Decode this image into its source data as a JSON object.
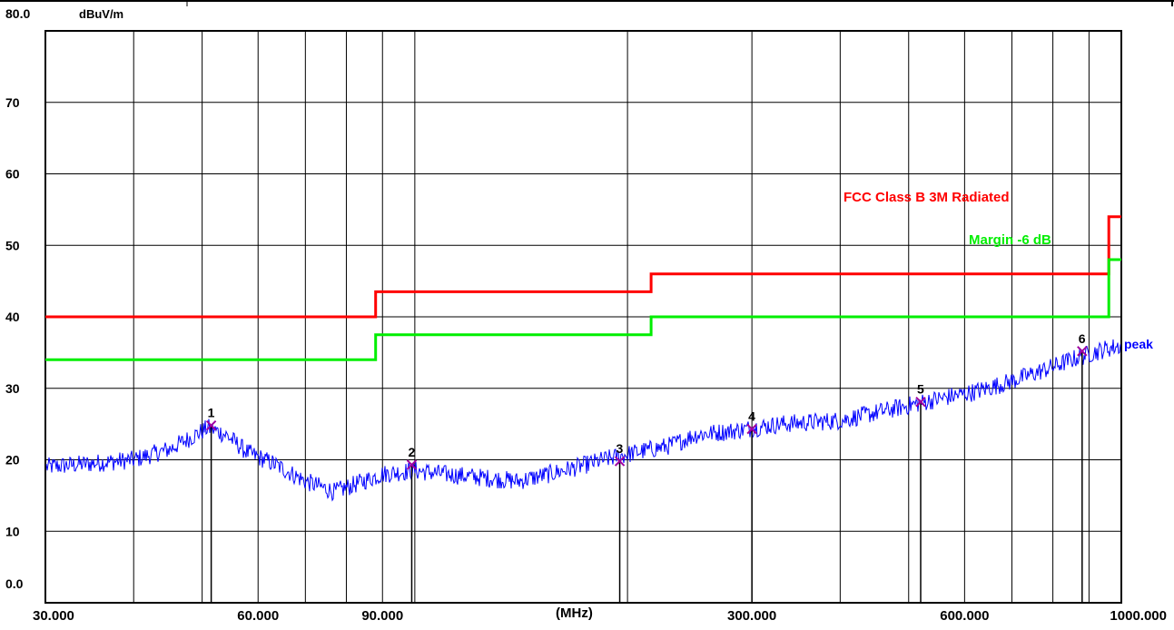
{
  "chart_data": {
    "type": "line",
    "ylabel": "dBuV/m",
    "xlabel": "(MHz)",
    "x_scale": "log",
    "xlim": [
      30,
      1000
    ],
    "ylim": [
      0,
      80
    ],
    "grid": true,
    "y_ticks": [
      {
        "value": 0,
        "label": "0.0"
      },
      {
        "value": 10,
        "label": "10"
      },
      {
        "value": 20,
        "label": "20"
      },
      {
        "value": 30,
        "label": "30"
      },
      {
        "value": 40,
        "label": "40"
      },
      {
        "value": 50,
        "label": "50"
      },
      {
        "value": 60,
        "label": "60"
      },
      {
        "value": 70,
        "label": "70"
      },
      {
        "value": 80,
        "label": "80.0"
      }
    ],
    "x_tick_labels": [
      {
        "value": 30,
        "label": "30.000"
      },
      {
        "value": 60,
        "label": "60.000"
      },
      {
        "value": 90,
        "label": "90.000"
      },
      {
        "value": 300,
        "label": "300.000"
      },
      {
        "value": 600,
        "label": "600.000"
      },
      {
        "value": 1000,
        "label": "1000.000"
      }
    ],
    "x_gridlines": [
      40,
      50,
      60,
      70,
      80,
      90,
      100,
      200,
      300,
      400,
      500,
      600,
      700,
      800,
      900
    ],
    "series": [
      {
        "name": "FCC Class B 3M Radiated",
        "color": "#ff0000",
        "step": true,
        "points": [
          [
            30,
            40.0
          ],
          [
            88,
            40.0
          ],
          [
            88,
            43.5
          ],
          [
            216,
            43.5
          ],
          [
            216,
            46.0
          ],
          [
            960,
            46.0
          ],
          [
            960,
            54.0
          ],
          [
            1000,
            54.0
          ]
        ]
      },
      {
        "name": "Margin -6 dB",
        "color": "#00ee00",
        "step": true,
        "points": [
          [
            30,
            34.0
          ],
          [
            88,
            34.0
          ],
          [
            88,
            37.5
          ],
          [
            216,
            37.5
          ],
          [
            216,
            40.0
          ],
          [
            960,
            40.0
          ],
          [
            960,
            48.0
          ],
          [
            1000,
            48.0
          ]
        ]
      },
      {
        "name": "peak",
        "color": "#0000ff",
        "trace": [
          [
            30,
            19.0
          ],
          [
            35,
            19.5
          ],
          [
            40,
            20.0
          ],
          [
            45,
            21.5
          ],
          [
            49,
            23.5
          ],
          [
            51,
            24.5
          ],
          [
            54,
            23.5
          ],
          [
            58,
            21.0
          ],
          [
            63,
            19.5
          ],
          [
            70,
            17.0
          ],
          [
            77,
            15.5
          ],
          [
            82,
            16.5
          ],
          [
            90,
            18.0
          ],
          [
            100,
            18.5
          ],
          [
            110,
            18.0
          ],
          [
            125,
            17.5
          ],
          [
            140,
            17.0
          ],
          [
            155,
            18.0
          ],
          [
            170,
            19.0
          ],
          [
            185,
            20.0
          ],
          [
            205,
            21.0
          ],
          [
            230,
            22.0
          ],
          [
            250,
            23.5
          ],
          [
            280,
            24.0
          ],
          [
            330,
            25.0
          ],
          [
            400,
            25.5
          ],
          [
            470,
            27.0
          ],
          [
            550,
            28.5
          ],
          [
            620,
            29.5
          ],
          [
            700,
            31.0
          ],
          [
            800,
            33.0
          ],
          [
            850,
            34.0
          ],
          [
            900,
            34.8
          ],
          [
            950,
            35.5
          ],
          [
            1000,
            36.0
          ]
        ]
      }
    ],
    "markers": [
      {
        "label": "1",
        "freq": 51.5,
        "level": 24.8
      },
      {
        "label": "2",
        "freq": 99.0,
        "level": 19.3
      },
      {
        "label": "3",
        "freq": 195.0,
        "level": 19.8
      },
      {
        "label": "4",
        "freq": 300.0,
        "level": 24.3
      },
      {
        "label": "5",
        "freq": 520.0,
        "level": 28.1
      },
      {
        "label": "6",
        "freq": 880.0,
        "level": 35.2
      }
    ],
    "annotations": {
      "limit_label": "FCC Class B 3M Radiated",
      "margin_label": "Margin -6 dB",
      "trace_label": "peak"
    }
  }
}
